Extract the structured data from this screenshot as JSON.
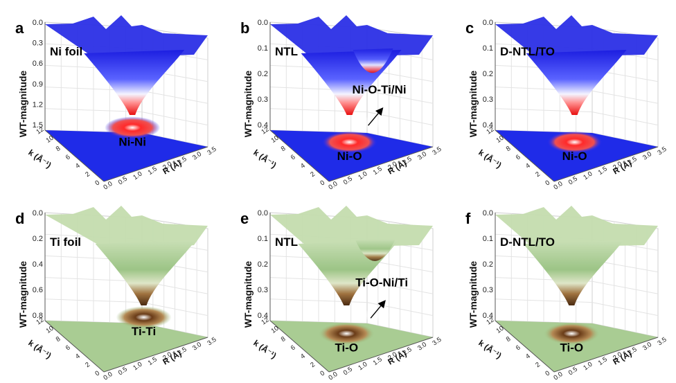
{
  "chart_data": [
    {
      "type": "surface",
      "panel": "a",
      "sample": "Ni foil",
      "zlabel": "WT-magnitude",
      "xlabel": "R (Å)",
      "ylabel": "k (Å⁻¹)",
      "colormap": "blue-white-red",
      "z_ticks": [
        "0.0",
        "0.3",
        "0.6",
        "0.9",
        "1.2",
        "1.5"
      ],
      "r_ticks": [
        "0.0",
        "0.5",
        "1.0",
        "1.5",
        "2.0",
        "2.5",
        "3.0",
        "3.5"
      ],
      "k_ticks": [
        "12",
        "10",
        "8",
        "6",
        "4",
        "2",
        "0"
      ],
      "zlim": [
        0,
        1.5
      ],
      "rlim": [
        0,
        3.5
      ],
      "klim": [
        0,
        12
      ],
      "peaks": [
        {
          "label": "Ni-Ni",
          "R": 2.2,
          "k": 7.5,
          "magnitude": 1.5
        }
      ]
    },
    {
      "type": "surface",
      "panel": "b",
      "sample": "NTL",
      "zlabel": "WT-magnitude",
      "xlabel": "R (Å)",
      "ylabel": "k (Å⁻¹)",
      "colormap": "blue-white-red",
      "z_ticks": [
        "0.0",
        "0.1",
        "0.2",
        "0.3",
        "0.4"
      ],
      "r_ticks": [
        "0.0",
        "0.5",
        "1.0",
        "1.5",
        "2.0",
        "2.5",
        "3.0",
        "3.5"
      ],
      "k_ticks": [
        "12",
        "10",
        "8",
        "6",
        "4",
        "2",
        "0"
      ],
      "zlim": [
        0,
        0.45
      ],
      "rlim": [
        0,
        3.5
      ],
      "klim": [
        0,
        12
      ],
      "peaks": [
        {
          "label": "Ni-O",
          "R": 1.6,
          "k": 5.5,
          "magnitude": 0.45
        },
        {
          "label": "Ni-O-Ti/Ni",
          "R": 2.7,
          "k": 7.5,
          "magnitude": 0.18
        }
      ]
    },
    {
      "type": "surface",
      "panel": "c",
      "sample": "D-NTL/TO",
      "zlabel": "WT-magnitude",
      "xlabel": "R (Å)",
      "ylabel": "k (Å⁻¹)",
      "colormap": "blue-white-red",
      "z_ticks": [
        "0.0",
        "0.1",
        "0.2",
        "0.3",
        "0.4"
      ],
      "r_ticks": [
        "0.0",
        "0.5",
        "1.0",
        "1.5",
        "2.0",
        "2.5",
        "3.0",
        "3.5"
      ],
      "k_ticks": [
        "12",
        "10",
        "8",
        "6",
        "4",
        "2",
        "0"
      ],
      "zlim": [
        0,
        0.45
      ],
      "rlim": [
        0,
        3.5
      ],
      "klim": [
        0,
        12
      ],
      "peaks": [
        {
          "label": "Ni-O",
          "R": 1.6,
          "k": 5.5,
          "magnitude": 0.45
        }
      ]
    },
    {
      "type": "surface",
      "panel": "d",
      "sample": "Ti foil",
      "zlabel": "WT-magnitude",
      "xlabel": "R (Å)",
      "ylabel": "k (Å⁻¹)",
      "colormap": "green-white-brown",
      "z_ticks": [
        "0.0",
        "0.2",
        "0.4",
        "0.6",
        "0.8"
      ],
      "r_ticks": [
        "0.0",
        "0.5",
        "1.0",
        "1.5",
        "2.0",
        "2.5",
        "3.0",
        "3.5"
      ],
      "k_ticks": [
        "12",
        "10",
        "8",
        "6",
        "4",
        "2",
        "0"
      ],
      "zlim": [
        0,
        0.85
      ],
      "rlim": [
        0,
        3.5
      ],
      "klim": [
        0,
        12
      ],
      "peaks": [
        {
          "label": "Ti-Ti",
          "R": 2.5,
          "k": 7,
          "magnitude": 0.85
        }
      ]
    },
    {
      "type": "surface",
      "panel": "e",
      "sample": "NTL",
      "zlabel": "WT-magnitude",
      "xlabel": "R (Å)",
      "ylabel": "k (Å⁻¹)",
      "colormap": "green-white-brown",
      "z_ticks": [
        "0.0",
        "0.1",
        "0.2",
        "0.3",
        "0.4"
      ],
      "r_ticks": [
        "0.0",
        "0.5",
        "1.0",
        "1.5",
        "2.0",
        "2.5",
        "3.0",
        "3.5"
      ],
      "k_ticks": [
        "12",
        "10",
        "8",
        "6",
        "4",
        "2",
        "0"
      ],
      "zlim": [
        0,
        0.42
      ],
      "rlim": [
        0,
        3.5
      ],
      "klim": [
        0,
        12
      ],
      "peaks": [
        {
          "label": "Ti-O",
          "R": 1.5,
          "k": 5.5,
          "magnitude": 0.42
        },
        {
          "label": "Ti-O-Ni/Ti",
          "R": 2.7,
          "k": 7,
          "magnitude": 0.15
        }
      ]
    },
    {
      "type": "surface",
      "panel": "f",
      "sample": "D-NTL/TO",
      "zlabel": "WT-magnitude",
      "xlabel": "R (Å)",
      "ylabel": "k (Å⁻¹)",
      "colormap": "green-white-brown",
      "z_ticks": [
        "0.0",
        "0.1",
        "0.2",
        "0.3",
        "0.4"
      ],
      "r_ticks": [
        "0.0",
        "0.5",
        "1.0",
        "1.5",
        "2.0",
        "2.5",
        "3.0",
        "3.5"
      ],
      "k_ticks": [
        "12",
        "10",
        "8",
        "6",
        "4",
        "2",
        "0"
      ],
      "zlim": [
        0,
        0.42
      ],
      "rlim": [
        0,
        3.5
      ],
      "klim": [
        0,
        12
      ],
      "peaks": [
        {
          "label": "Ti-O",
          "R": 1.5,
          "k": 5.5,
          "magnitude": 0.42
        }
      ]
    }
  ]
}
